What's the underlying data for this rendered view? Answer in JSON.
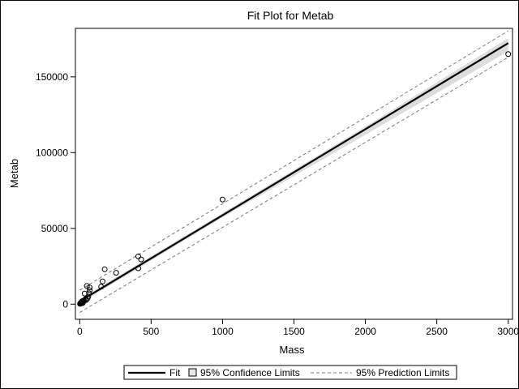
{
  "chart_data": {
    "type": "scatter",
    "title": "Fit Plot for Metab",
    "xlabel": "Mass",
    "ylabel": "Metab",
    "xlim": [
      -30,
      3030
    ],
    "ylim": [
      -10000,
      182000
    ],
    "xticks": [
      0,
      500,
      1000,
      1500,
      2000,
      2500,
      3000
    ],
    "yticks": [
      0,
      50000,
      100000,
      150000
    ],
    "grid": false,
    "legend_position": "bottom",
    "fit": {
      "intercept": 1850,
      "slope": 56.8
    },
    "confidence_band": [
      {
        "x": 0,
        "lower": 400,
        "upper": 3300
      },
      {
        "x": 1000,
        "lower": 57200,
        "upper": 60100
      },
      {
        "x": 2000,
        "lower": 111800,
        "upper": 117200
      },
      {
        "x": 3000,
        "lower": 166800,
        "upper": 175600
      }
    ],
    "prediction_band": [
      {
        "x": 0,
        "lower": -5500,
        "upper": 9200
      },
      {
        "x": 3000,
        "lower": 163000,
        "upper": 180300
      }
    ],
    "points": [
      {
        "x": 2,
        "y": 200
      },
      {
        "x": 4,
        "y": 300
      },
      {
        "x": 6,
        "y": 600
      },
      {
        "x": 8,
        "y": 900
      },
      {
        "x": 10,
        "y": 1200
      },
      {
        "x": 12,
        "y": 800
      },
      {
        "x": 14,
        "y": 1400
      },
      {
        "x": 16,
        "y": 1700
      },
      {
        "x": 18,
        "y": 2000
      },
      {
        "x": 20,
        "y": 600
      },
      {
        "x": 25,
        "y": 1500
      },
      {
        "x": 30,
        "y": 2300
      },
      {
        "x": 35,
        "y": 7000
      },
      {
        "x": 40,
        "y": 3300
      },
      {
        "x": 45,
        "y": 2700
      },
      {
        "x": 50,
        "y": 12000
      },
      {
        "x": 55,
        "y": 3800
      },
      {
        "x": 60,
        "y": 5000
      },
      {
        "x": 65,
        "y": 7200
      },
      {
        "x": 70,
        "y": 9200
      },
      {
        "x": 70,
        "y": 11000
      },
      {
        "x": 150,
        "y": 11500
      },
      {
        "x": 160,
        "y": 15000
      },
      {
        "x": 175,
        "y": 23000
      },
      {
        "x": 255,
        "y": 20700
      },
      {
        "x": 410,
        "y": 31500
      },
      {
        "x": 410,
        "y": 23700
      },
      {
        "x": 430,
        "y": 29500
      },
      {
        "x": 1000,
        "y": 69000
      },
      {
        "x": 3000,
        "y": 165000
      }
    ],
    "legend": {
      "fit": "Fit",
      "confidence": "95% Confidence Limits",
      "prediction": "95% Prediction Limits"
    }
  }
}
